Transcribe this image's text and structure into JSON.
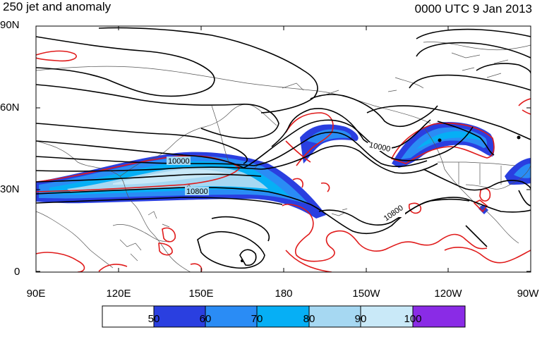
{
  "header": {
    "left_title": "250 jet and anomaly",
    "right_title": "0000 UTC 9 Jan 2013"
  },
  "axes": {
    "y_ticks": [
      "90N",
      "60N",
      "30N",
      "0"
    ],
    "x_ticks": [
      "90E",
      "120E",
      "150E",
      "180",
      "150W",
      "120W",
      "90W"
    ]
  },
  "contour_labels": [
    "10000",
    "10800",
    "10000",
    "10800"
  ],
  "colorbar": {
    "labels": [
      "50",
      "60",
      "70",
      "80",
      "90",
      "100"
    ],
    "colors": [
      "#ffffff",
      "#2a3fe0",
      "#2a8cf5",
      "#06aff5",
      "#a6d8f2",
      "#c9e9f8",
      "#8a2be6"
    ]
  },
  "colors": {
    "height_contour": "#000000",
    "anomaly_contour": "#e01b1b",
    "coastline": "#444444"
  }
}
